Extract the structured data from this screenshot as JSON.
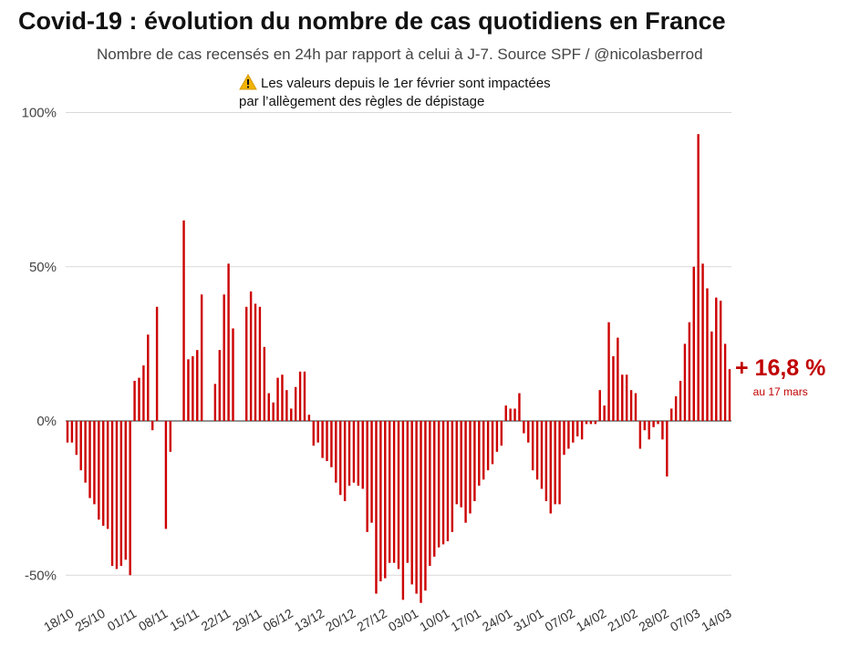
{
  "title": "Covid-19 : évolution du nombre de cas quotidiens en France",
  "subtitle": "Nombre de cas recensés en 24h par rapport à celui à J-7. Source SPF / @nicolasberrod",
  "warning": {
    "icon": "warning-icon",
    "line1": "Les valeurs depuis le 1er février sont impactées",
    "line2": "par l’allègement des règles de dépistage"
  },
  "annotation": {
    "value": "+ 16,8 %",
    "date": "au 17 mars"
  },
  "colors": {
    "bar": "#cc0000",
    "grid": "#d9d9d9",
    "annotation": "#c00000"
  },
  "chart_data": {
    "type": "bar",
    "title": "Covid-19 : évolution du nombre de cas quotidiens en France",
    "xlabel": "",
    "ylabel": "",
    "ylim": [
      -58,
      100
    ],
    "yticks": [
      100,
      50,
      0,
      -50
    ],
    "ytick_labels": [
      "100%",
      "50%",
      "0%",
      "-50%"
    ],
    "grid": true,
    "start_date": "18/10",
    "end_date": "17/03",
    "x_tick_labels": [
      "18/10",
      "25/10",
      "01/11",
      "08/11",
      "15/11",
      "22/11",
      "29/11",
      "06/12",
      "13/12",
      "20/12",
      "27/12",
      "03/01",
      "10/01",
      "17/01",
      "24/01",
      "31/01",
      "07/02",
      "14/02",
      "21/02",
      "28/02",
      "07/03",
      "14/03"
    ],
    "values": [
      -7,
      -7,
      -11,
      -16,
      -20,
      -25,
      -27,
      -32,
      -34,
      -35,
      -47,
      -48,
      -47,
      -45,
      -50,
      13,
      14,
      18,
      28,
      -3,
      37,
      0,
      -35,
      -10,
      0,
      0,
      65,
      20,
      21,
      23,
      41,
      0,
      0,
      12,
      23,
      41,
      51,
      30,
      0,
      0,
      37,
      42,
      38,
      37,
      24,
      9,
      6,
      14,
      15,
      10,
      4,
      11,
      16,
      16,
      2,
      -8,
      -7,
      -12,
      -13,
      -15,
      -20,
      -24,
      -26,
      -21,
      -20,
      -21,
      -22,
      -36,
      -33,
      -56,
      -52,
      -51,
      -46,
      -46,
      -48,
      -58,
      -46,
      -53,
      -56,
      -59,
      -55,
      -47,
      -44,
      -41,
      -40,
      -39,
      -36,
      -27,
      -28,
      -33,
      -30,
      -26,
      -21,
      -19,
      -16,
      -14,
      -10,
      -8,
      5,
      4,
      4,
      9,
      -4,
      -7,
      -16,
      -19,
      -22,
      -26,
      -30,
      -27,
      -27,
      -11,
      -9,
      -7,
      -5,
      -6,
      -1,
      -1,
      -1,
      10,
      5,
      32,
      21,
      27,
      15,
      15,
      10,
      9,
      -9,
      -3,
      -6,
      -2,
      -1,
      -6,
      -18,
      4,
      8,
      13,
      25,
      32,
      50,
      93,
      51,
      43,
      29,
      40,
      39,
      25,
      16.8
    ]
  }
}
